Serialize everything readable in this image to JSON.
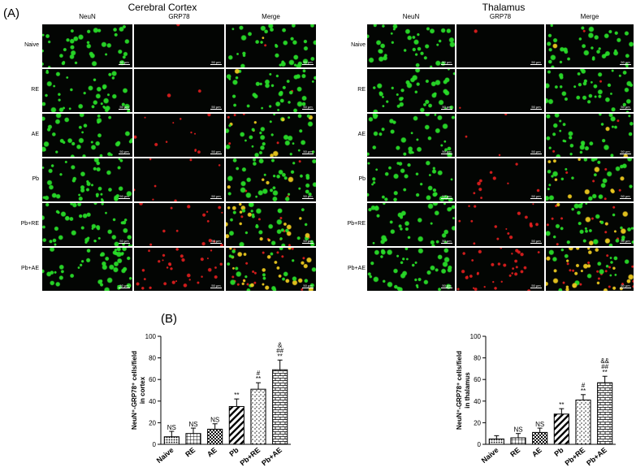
{
  "panel_a": {
    "letter": "(A)",
    "columns": [
      "NeuN",
      "GRP78",
      "Merge"
    ],
    "rows": [
      "Naive",
      "RE",
      "AE",
      "Pb",
      "Pb+RE",
      "Pb+AE"
    ],
    "scale_bar": "50 μm",
    "regions": [
      {
        "title": "Cerebral Cortex",
        "green_level": [
          0.55,
          0.6,
          0.55,
          0.7,
          0.85,
          0.8
        ],
        "red_level": [
          0.03,
          0.05,
          0.35,
          0.2,
          0.45,
          0.9
        ]
      },
      {
        "title": "Thalamus",
        "green_level": [
          0.6,
          0.6,
          0.45,
          0.5,
          0.55,
          0.65
        ],
        "red_level": [
          0.02,
          0.04,
          0.1,
          0.3,
          0.5,
          1.0
        ]
      }
    ]
  },
  "panel_b": {
    "letter": "(B)",
    "colors": {
      "bar_fill": "#ffffff",
      "bar_stroke": "#000000",
      "red": "#ff2b2b",
      "green": "#28e028"
    }
  },
  "chart_data": [
    {
      "type": "bar",
      "ylabel_lines": [
        "NeuN⁺-GRP78⁺ cells/field",
        "in cortex"
      ],
      "ylim": [
        0,
        100
      ],
      "yticks": [
        "0",
        "20",
        "40",
        "60",
        "80",
        "100"
      ],
      "categories": [
        "Naive",
        "RE",
        "AE",
        "Pb",
        "Pb+RE",
        "Pb+AE"
      ],
      "values": [
        7,
        10,
        14,
        35,
        51,
        69
      ],
      "errors": [
        5,
        5,
        5,
        7,
        6,
        9
      ],
      "patterns": [
        "dots",
        "grid",
        "check",
        "diag",
        "hdash",
        "brick"
      ],
      "annotations": [
        [
          "NS"
        ],
        [
          "NS"
        ],
        [
          "NS"
        ],
        [
          "**"
        ],
        [
          "#",
          "**"
        ],
        [
          "&",
          "##",
          "**"
        ]
      ]
    },
    {
      "type": "bar",
      "ylabel_lines": [
        "NeuN⁺-GRP78⁺ cells/field",
        "in thalamus"
      ],
      "ylim": [
        0,
        100
      ],
      "yticks": [
        "0",
        "20",
        "40",
        "60",
        "80",
        "100"
      ],
      "categories": [
        "Naive",
        "RE",
        "AE",
        "Pb",
        "Pb+RE",
        "Pb+AE"
      ],
      "values": [
        5,
        6,
        11,
        28,
        41,
        57
      ],
      "errors": [
        3,
        4,
        4,
        5,
        5,
        6
      ],
      "patterns": [
        "dots",
        "grid",
        "check",
        "diag",
        "hdash",
        "brick"
      ],
      "annotations": [
        [],
        [
          "NS"
        ],
        [
          "NS"
        ],
        [
          "**"
        ],
        [
          "#",
          "**"
        ],
        [
          "&&",
          "##",
          "**"
        ]
      ]
    }
  ]
}
